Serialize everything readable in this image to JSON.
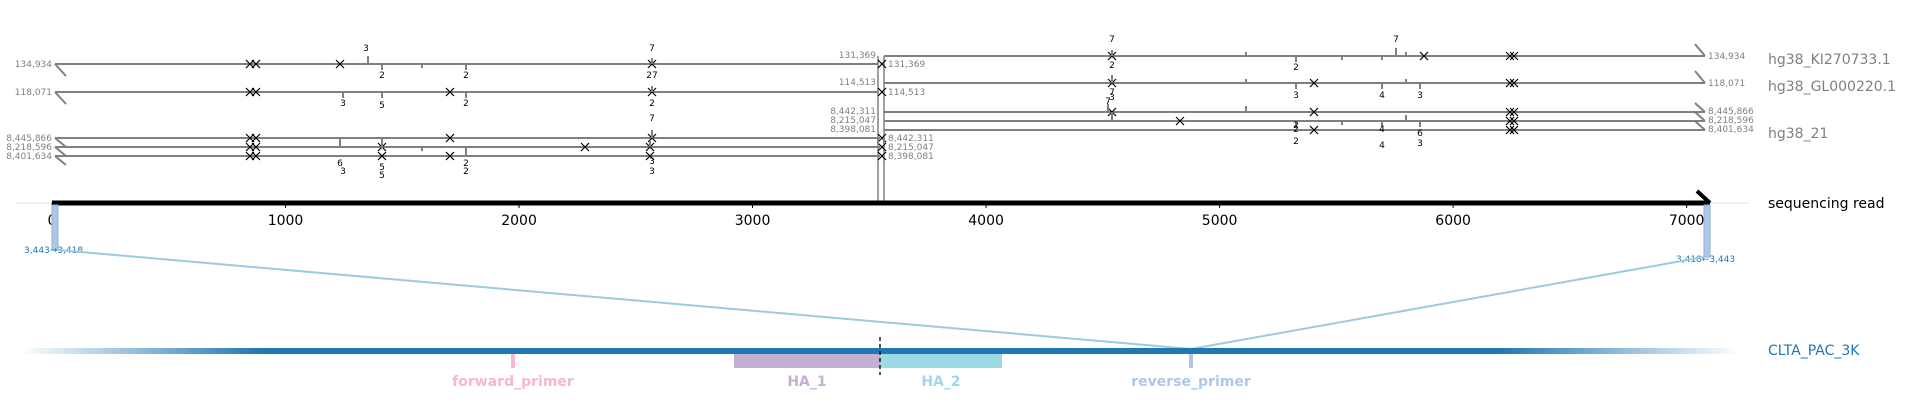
{
  "diagram": {
    "read": {
      "label": "sequencing read",
      "length": 7100,
      "ticks": [
        0,
        1000,
        2000,
        3000,
        4000,
        5000,
        6000,
        7000
      ]
    },
    "amplicon": {
      "label": "CLTA_PAC_3K",
      "color": "#1f77b4",
      "features": [
        {
          "name": "forward_primer",
          "color": "#f7b6d2"
        },
        {
          "name": "HA_1",
          "color": "#c5b0d5"
        },
        {
          "name": "HA_2",
          "color": "#9edae5"
        },
        {
          "name": "reverse_primer",
          "color": "#aec7e8"
        }
      ],
      "pointers": {
        "left": "3,443→3,418",
        "right": "3,418←3,443"
      }
    },
    "references": {
      "kI": {
        "label": "hg38_KI270733.1",
        "left_start": "134,934",
        "left_end": "131,369",
        "right_start": "131,369",
        "right_end": "134,934"
      },
      "gl": {
        "label": "hg38_GL000220.1",
        "left_start": "118,071",
        "left_end": "114,513",
        "right_start": "114,513",
        "right_end": "118,071"
      },
      "h21": {
        "label": "hg38_21",
        "left_starts": [
          "8,445,866",
          "8,218,596",
          "8,401,634"
        ],
        "left_ends": [
          "8,442,311",
          "8,215,047",
          "8,398,081"
        ],
        "right_starts": [
          "8,442,311",
          "8,215,047",
          "8,398,081"
        ],
        "right_ends": [
          "8,445,866",
          "8,218,596",
          "8,401,634"
        ]
      }
    },
    "mismatch_counts": [
      "2",
      "2",
      "3",
      "7",
      "27",
      "3",
      "5",
      "2",
      "7",
      "2",
      "6",
      "3",
      "5",
      "5",
      "2",
      "2",
      "3",
      "3",
      "7",
      "3",
      "2",
      "7",
      "2",
      "3",
      "7",
      "2",
      "4",
      "3",
      "7",
      "2",
      "2",
      "4",
      "4",
      "6",
      "3"
    ],
    "colors": {
      "alignment": "#808080",
      "read": "#000000",
      "connector": "#9ecae1"
    }
  }
}
